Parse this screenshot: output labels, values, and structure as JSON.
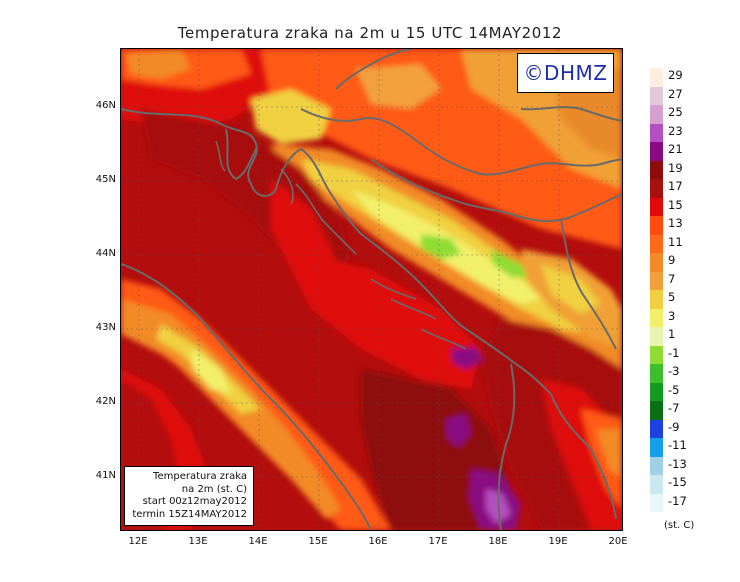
{
  "title": "Temperatura zraka na 2m u 15 UTC 14MAY2012",
  "logo": "©DHMZ",
  "info_box": {
    "line1": "Temperatura zraka",
    "line2": "na 2m (st. C)",
    "line3": "start 00z12may2012",
    "line4": "termin 15Z14MAY2012"
  },
  "axes": {
    "x_ticks": [
      "12E",
      "13E",
      "14E",
      "15E",
      "16E",
      "17E",
      "18E",
      "19E",
      "20E"
    ],
    "y_ticks": [
      "46N",
      "45N",
      "44N",
      "43N",
      "42N",
      "41N"
    ]
  },
  "legend": {
    "unit": "(st. C)",
    "labels": [
      "29",
      "27",
      "25",
      "23",
      "21",
      "19",
      "17",
      "15",
      "13",
      "11",
      "9",
      "7",
      "5",
      "3",
      "1",
      "-1",
      "-3",
      "-5",
      "-7",
      "-9",
      "-11",
      "-13",
      "-15",
      "-17"
    ],
    "colors": [
      "#fdeee0",
      "#e4c8dc",
      "#d59fd0",
      "#b44fc0",
      "#8a0a82",
      "#8e0b0b",
      "#a81010",
      "#e00a0a",
      "#ff4a10",
      "#ff6a18",
      "#f28a28",
      "#f2a03c",
      "#f0d040",
      "#f2f06a",
      "#e8f5b0",
      "#8fdc32",
      "#3cbf2a",
      "#139b21",
      "#0b6f15",
      "#1e40e0",
      "#12a0e8",
      "#9fd0e6",
      "#c9e8f0",
      "#e8f8fa"
    ]
  },
  "colors": {
    "sea_base": "#b30d0d",
    "land_warm": "#ff5a14",
    "mountains": "#f0d040",
    "border_lines": "#666666"
  }
}
